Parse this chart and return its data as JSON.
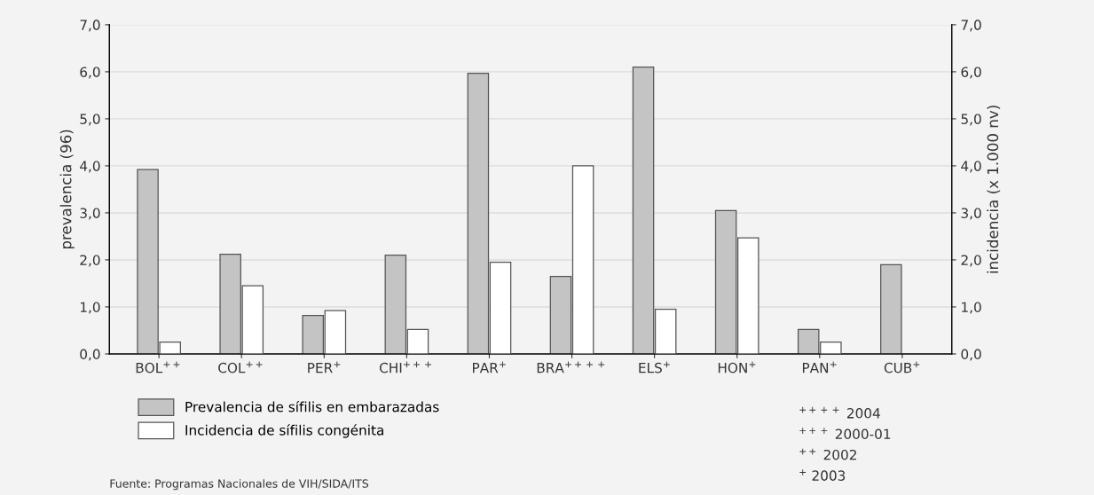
{
  "chart_data": {
    "type": "bar",
    "categories": [
      "BOL$^{++}$",
      "COL$^{++}$",
      "PER$^{+}$",
      "CHI$^{+++}$",
      "PAR$^{+}$",
      "BRA$^{++++}$",
      "ELS$^{+}$",
      "HON$^{+}$",
      "PAN$^{+}$",
      "CUB$^{+}$"
    ],
    "series": [
      {
        "name": "Prevalencia de sífilis en embarazadas",
        "color": "#c4c4c4",
        "values": [
          3.92,
          2.12,
          0.82,
          2.1,
          5.97,
          1.65,
          6.1,
          3.05,
          0.52,
          1.9
        ]
      },
      {
        "name": "Incidencia de sífilis congénita",
        "color": "#ffffff",
        "axis": "y2",
        "values": [
          0.25,
          1.45,
          0.92,
          0.52,
          1.95,
          4.0,
          0.95,
          2.47,
          0.25,
          null
        ]
      }
    ],
    "ylabel": "prevalencia (96)",
    "y2label": "incidencia (x 1.000 nv)",
    "ylim": [
      0,
      7
    ],
    "yticks": [
      {
        "value": 0,
        "label": "0,0"
      },
      {
        "value": 1,
        "label": "1,0"
      },
      {
        "value": 2,
        "label": "2,0"
      },
      {
        "value": 3,
        "label": "3,0"
      },
      {
        "value": 4,
        "label": "4,0"
      },
      {
        "value": 5,
        "label": "5,0"
      },
      {
        "value": 6,
        "label": "6,0"
      },
      {
        "value": 7,
        "label": "7,0"
      }
    ],
    "y2lim": [
      0,
      7
    ],
    "y2ticks": [
      {
        "value": 0,
        "label": "0,0"
      },
      {
        "value": 1,
        "label": "1,0"
      },
      {
        "value": 2,
        "label": "2,0"
      },
      {
        "value": 3,
        "label": "3,0"
      },
      {
        "value": 4,
        "label": "4,0"
      },
      {
        "value": 5,
        "label": "5,0"
      },
      {
        "value": 6,
        "label": "6,0"
      },
      {
        "value": 7,
        "label": "7,0"
      }
    ],
    "grid": "y",
    "legend": "bottom left",
    "annotations": [
      "$^{++++}$ 2004",
      "$^{+++}$ 2000-01",
      "$^{++}$ 2002",
      "$^{+}$ 2003",
      "Fuente: Programas Nacionales de VIH/SIDA/ITS"
    ]
  }
}
